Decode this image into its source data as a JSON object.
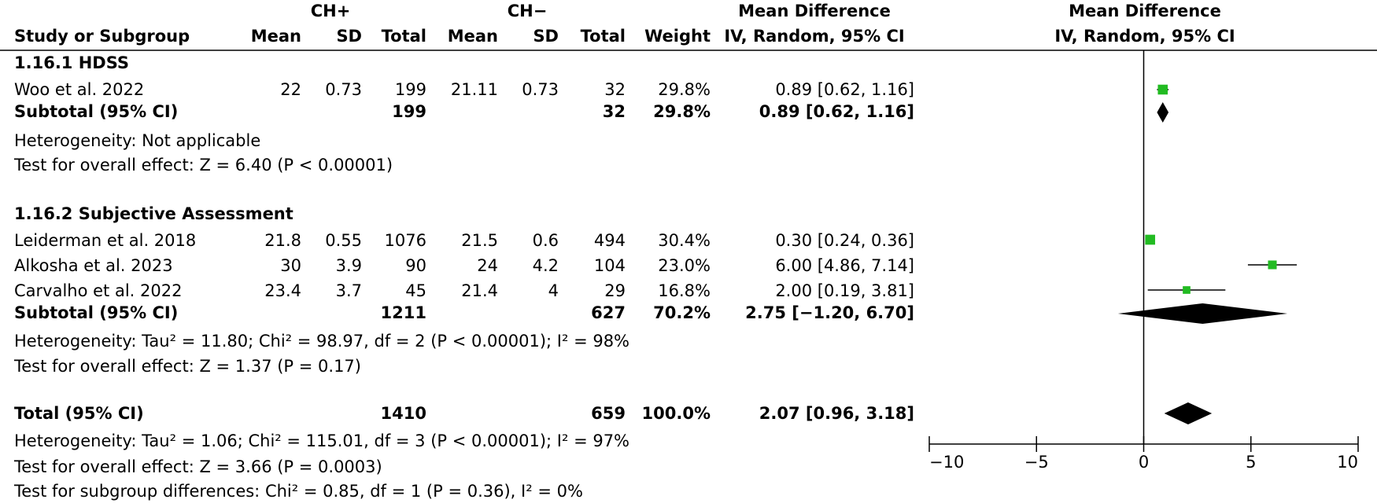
{
  "header": {
    "group1": "CH+",
    "group2": "CH−",
    "md_title": "Mean Difference",
    "md_sub": "IV, Random, 95% CI",
    "plot_title": "Mean Difference",
    "plot_sub": "IV, Random, 95% CI",
    "study_col": "Study or Subgroup",
    "mean1": "Mean",
    "sd1": "SD",
    "total1": "Total",
    "mean2": "Mean",
    "sd2": "SD",
    "total2": "Total",
    "weight": "Weight"
  },
  "subgroups": [
    {
      "title": "1.16.1 HDSS",
      "studies": [
        {
          "name": "Woo et al. 2022",
          "mean1": "22",
          "sd1": "0.73",
          "total1": "199",
          "mean2": "21.11",
          "sd2": "0.73",
          "total2": "32",
          "weight": "29.8%",
          "ci": "0.89 [0.62, 1.16]"
        }
      ],
      "subtotal": {
        "label": "Subtotal (95% CI)",
        "total1": "199",
        "total2": "32",
        "weight": "29.8%",
        "ci": "0.89 [0.62, 1.16]"
      },
      "heterogeneity": "Heterogeneity: Not applicable",
      "overall": "Test for overall effect: Z = 6.40 (P < 0.00001)"
    },
    {
      "title": "1.16.2 Subjective Assessment",
      "studies": [
        {
          "name": "Leiderman et al. 2018",
          "mean1": "21.8",
          "sd1": "0.55",
          "total1": "1076",
          "mean2": "21.5",
          "sd2": "0.6",
          "total2": "494",
          "weight": "30.4%",
          "ci": "0.30 [0.24, 0.36]"
        },
        {
          "name": "Alkosha et al. 2023",
          "mean1": "30",
          "sd1": "3.9",
          "total1": "90",
          "mean2": "24",
          "sd2": "4.2",
          "total2": "104",
          "weight": "23.0%",
          "ci": "6.00 [4.86, 7.14]"
        },
        {
          "name": "Carvalho et al. 2022",
          "mean1": "23.4",
          "sd1": "3.7",
          "total1": "45",
          "mean2": "21.4",
          "sd2": "4",
          "total2": "29",
          "weight": "16.8%",
          "ci": "2.00 [0.19, 3.81]"
        }
      ],
      "subtotal": {
        "label": "Subtotal (95% CI)",
        "total1": "1211",
        "total2": "627",
        "weight": "70.2%",
        "ci": "2.75 [−1.20, 6.70]"
      },
      "heterogeneity": "Heterogeneity: Tau² = 11.80; Chi² = 98.97, df = 2 (P < 0.00001); I² = 98%",
      "overall": "Test for overall effect: Z = 1.37 (P = 0.17)"
    }
  ],
  "total": {
    "label": "Total (95% CI)",
    "total1": "1410",
    "total2": "659",
    "weight": "100.0%",
    "ci": "2.07 [0.96, 3.18]"
  },
  "footer": {
    "heterogeneity": "Heterogeneity: Tau² = 1.06; Chi² = 115.01, df = 3 (P < 0.00001); I² = 97%",
    "overall": "Test for overall effect: Z = 3.66 (P = 0.0003)",
    "subgroup_diff": "Test for subgroup differences: Chi² = 0.85, df = 1 (P = 0.36), I² = 0%"
  },
  "chart_data": {
    "type": "forest",
    "title": "Mean Difference",
    "subtitle": "IV, Random, 95% CI",
    "xlim": [
      -10,
      10
    ],
    "xticks": [
      -10,
      -5,
      0,
      5,
      10
    ],
    "xtick_labels": [
      "−10",
      "−5",
      "0",
      "5",
      "10"
    ],
    "colors": {
      "study_marker": "#22bb22",
      "diamond": "#000000",
      "line": "#000000"
    },
    "studies": [
      {
        "name": "Woo et al. 2022",
        "est": 0.89,
        "lo": 0.62,
        "hi": 1.16,
        "weight": 29.8
      },
      {
        "name": "Leiderman et al. 2018",
        "est": 0.3,
        "lo": 0.24,
        "hi": 0.36,
        "weight": 30.4
      },
      {
        "name": "Alkosha et al. 2023",
        "est": 6.0,
        "lo": 4.86,
        "hi": 7.14,
        "weight": 23.0
      },
      {
        "name": "Carvalho et al. 2022",
        "est": 2.0,
        "lo": 0.19,
        "hi": 3.81,
        "weight": 16.8
      }
    ],
    "diamonds": [
      {
        "name": "Subtotal 1.16.1 HDSS",
        "est": 0.89,
        "lo": 0.62,
        "hi": 1.16
      },
      {
        "name": "Subtotal 1.16.2 Subjective Assessment",
        "est": 2.75,
        "lo": -1.2,
        "hi": 6.7
      },
      {
        "name": "Total",
        "est": 2.07,
        "lo": 0.96,
        "hi": 3.18
      }
    ]
  }
}
